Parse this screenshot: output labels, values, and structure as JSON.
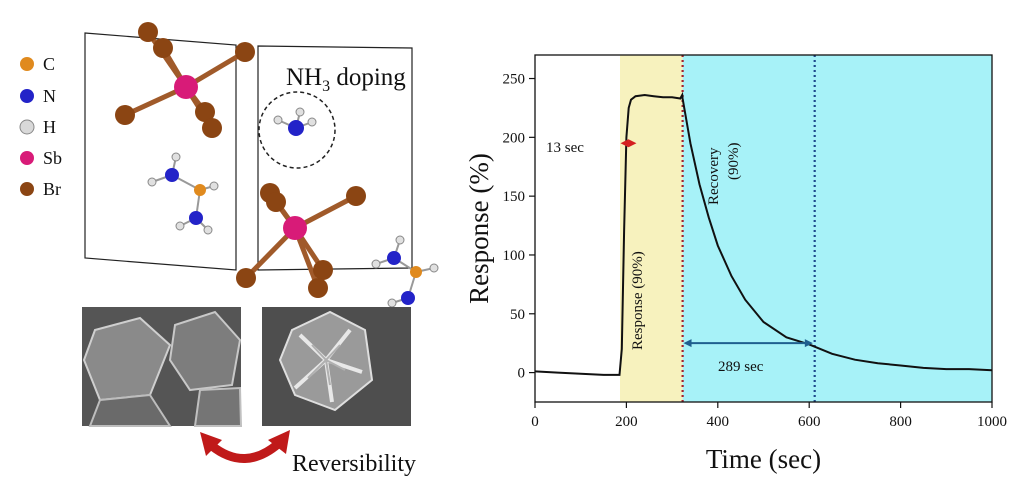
{
  "figure": {
    "legend": {
      "items": [
        {
          "symbol": "C",
          "color": "#e08a1e"
        },
        {
          "symbol": "N",
          "color": "#2323c8"
        },
        {
          "symbol": "H",
          "color": "#d9d9d9"
        },
        {
          "symbol": "Sb",
          "color": "#d81b78"
        },
        {
          "symbol": "Br",
          "color": "#8b4513"
        }
      ]
    },
    "structure_label": {
      "prefix": "NH",
      "sub": "3",
      "suffix": " doping"
    },
    "reversibility_label": "Reversibility",
    "arrow_color": "#c01a1a"
  },
  "chart_data": {
    "type": "line",
    "xlabel": "Time (sec)",
    "ylabel": "Response (%)",
    "xlim": [
      0,
      1000
    ],
    "ylim": [
      -25,
      270
    ],
    "xticks": [
      0,
      200,
      400,
      600,
      800,
      1000
    ],
    "yticks": [
      0,
      50,
      100,
      150,
      200,
      250
    ],
    "grid": false,
    "regions": [
      {
        "x0": 186,
        "x1": 323,
        "color": "#f7f2be"
      },
      {
        "x0": 323,
        "x1": 1000,
        "color": "#a7f2f8"
      }
    ],
    "vlines": [
      {
        "x": 323,
        "color": "#a3222e",
        "style": "dotted"
      },
      {
        "x": 612,
        "color": "#1e4a8c",
        "style": "dotted"
      }
    ],
    "series": [
      {
        "color": "#111111",
        "x": [
          0,
          50,
          100,
          150,
          185,
          190,
          195,
          200,
          205,
          210,
          220,
          240,
          260,
          280,
          300,
          318,
          322,
          323,
          340,
          360,
          380,
          400,
          430,
          460,
          500,
          550,
          600,
          612,
          650,
          700,
          750,
          800,
          850,
          900,
          950,
          1000
        ],
        "y": [
          1,
          0,
          -1,
          -2,
          -2,
          20,
          120,
          200,
          225,
          232,
          235,
          236,
          235,
          234,
          234,
          233,
          236,
          233,
          195,
          160,
          132,
          108,
          82,
          62,
          43,
          30,
          24,
          22,
          16,
          11,
          8,
          6,
          4,
          3,
          3,
          2
        ]
      }
    ],
    "annotations": [
      {
        "text": "13 sec"
      },
      {
        "text": "Response (90%)"
      },
      {
        "text": "Recovery"
      },
      {
        "text": "(90%)"
      },
      {
        "text": "289 sec"
      }
    ],
    "arrows": [
      {
        "x0": 187,
        "x1": 222,
        "y": 195,
        "color": "#d42020"
      },
      {
        "x0": 325,
        "x1": 608,
        "y": 25,
        "color": "#1f5f8f"
      }
    ]
  }
}
